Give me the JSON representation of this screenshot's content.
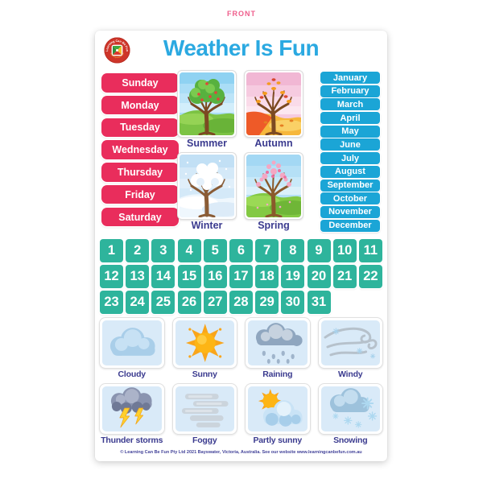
{
  "front_label": "FRONT",
  "title": "Weather Is Fun",
  "logo": {
    "arc_text": "Learning Can Be Fun",
    "site_text": "www.learningcanbefun.com.au"
  },
  "days": [
    "Sunday",
    "Monday",
    "Tuesday",
    "Wednesday",
    "Thursday",
    "Friday",
    "Saturday"
  ],
  "months": [
    "January",
    "February",
    "March",
    "April",
    "May",
    "June",
    "July",
    "August",
    "September",
    "October",
    "November",
    "December"
  ],
  "dates": [
    1,
    2,
    3,
    4,
    5,
    6,
    7,
    8,
    9,
    10,
    11,
    12,
    13,
    14,
    15,
    16,
    17,
    18,
    19,
    20,
    21,
    22,
    23,
    24,
    25,
    26,
    27,
    28,
    29,
    30,
    31
  ],
  "seasons": [
    {
      "label": "Summer",
      "icon": "season-summer"
    },
    {
      "label": "Autumn",
      "icon": "season-autumn"
    },
    {
      "label": "Winter",
      "icon": "season-winter"
    },
    {
      "label": "Spring",
      "icon": "season-spring"
    }
  ],
  "weather": [
    {
      "label": "Cloudy",
      "icon": "wx-cloudy"
    },
    {
      "label": "Sunny",
      "icon": "wx-sunny"
    },
    {
      "label": "Raining",
      "icon": "wx-raining"
    },
    {
      "label": "Windy",
      "icon": "wx-windy"
    },
    {
      "label": "Thunder storms",
      "icon": "wx-thunder"
    },
    {
      "label": "Foggy",
      "icon": "wx-foggy"
    },
    {
      "label": "Partly sunny",
      "icon": "wx-partly-sunny"
    },
    {
      "label": "Snowing",
      "icon": "wx-snowing"
    }
  ],
  "footer": "© Learning Can Be Fun Pty Ltd 2021 Bayswater, Victoria, Australia. See our website www.learningcanbefun.com.au",
  "colors": {
    "front_label": "#EF5E8C",
    "title_blue": "#2BA9E1",
    "day_pink": "#E92D5C",
    "month_cyan": "#1BA5D6",
    "date_teal": "#2EB49C",
    "label_navy": "#3B3B8F",
    "card_blue": "#D9EAF8",
    "logo_red": "#CE3529"
  }
}
